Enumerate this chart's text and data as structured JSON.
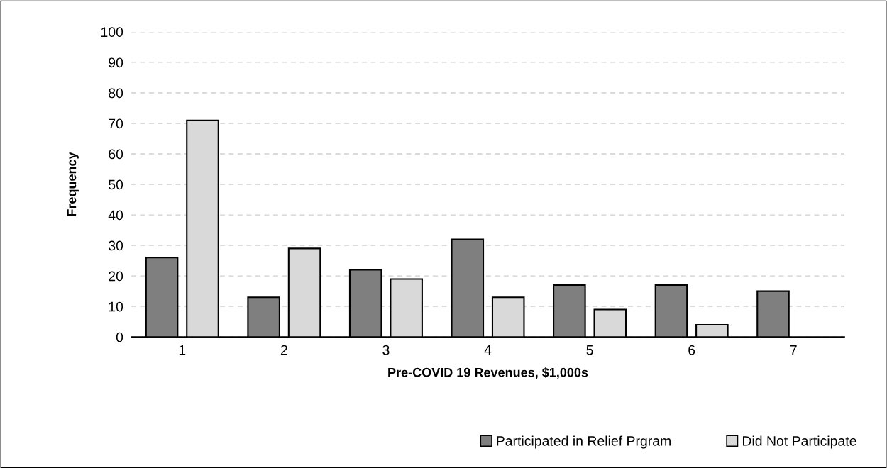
{
  "chart_data": {
    "type": "bar",
    "xlabel": "Pre-COVID 19 Revenues, $1,000s",
    "ylabel": "Frequency",
    "categories": [
      "1",
      "2",
      "3",
      "4",
      "5",
      "6",
      "7"
    ],
    "series": [
      {
        "name": "Participated in Relief Prgram",
        "color": "#7f7f7f",
        "values": [
          26,
          13,
          22,
          32,
          17,
          17,
          15
        ]
      },
      {
        "name": "Did Not Participate",
        "color": "#d9d9d9",
        "values": [
          71,
          29,
          19,
          13,
          9,
          4,
          null
        ]
      }
    ],
    "ylim": [
      0,
      100
    ],
    "yticks": [
      0,
      10,
      20,
      30,
      40,
      50,
      60,
      70,
      80,
      90,
      100
    ],
    "grid": "y",
    "legend": "bottom right"
  }
}
